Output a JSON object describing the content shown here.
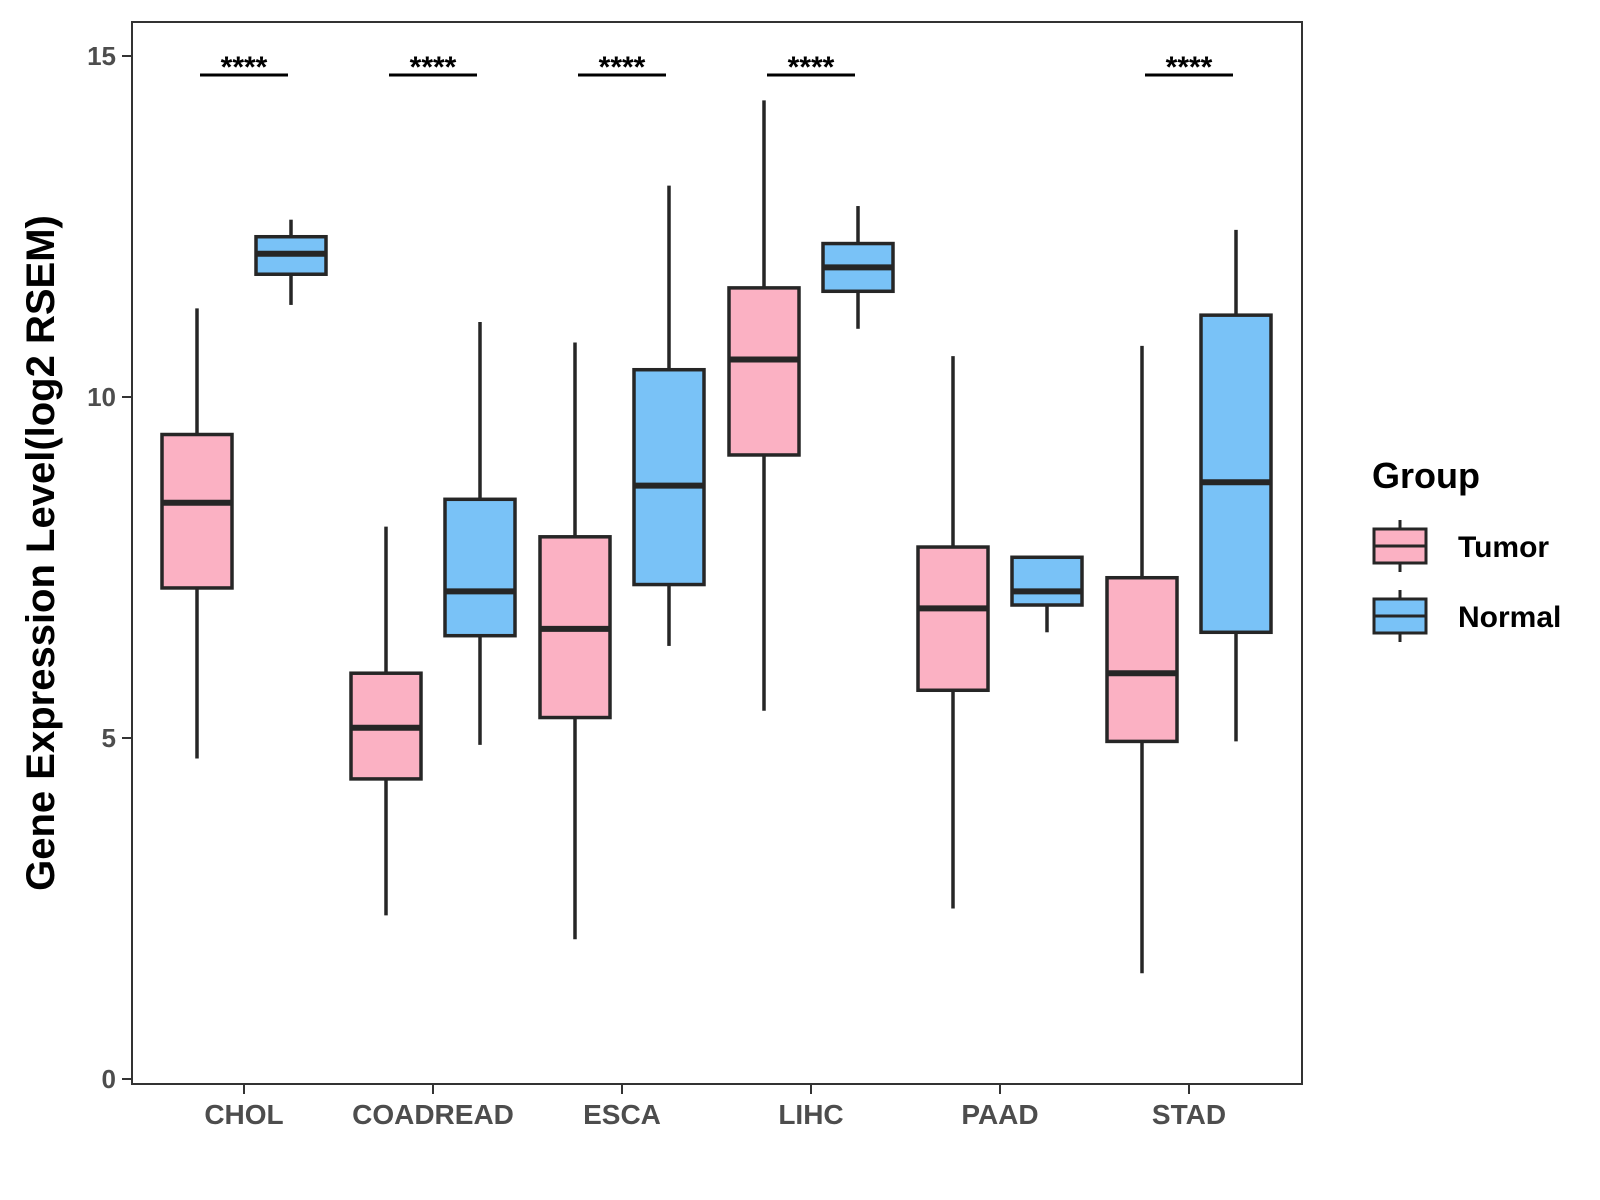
{
  "chart_data": {
    "type": "boxplot",
    "title": "",
    "xlabel": "",
    "ylabel": "Gene Expression Level(log2 RSEM)",
    "ylim": [
      0,
      15
    ],
    "yticks": [
      0,
      5,
      10,
      15
    ],
    "categories": [
      "CHOL",
      "COADREAD",
      "ESCA",
      "LIHC",
      "PAAD",
      "STAD"
    ],
    "series": [
      {
        "name": "Tumor",
        "color": "#fbb1c3",
        "boxes": [
          {
            "min": 4.7,
            "q1": 7.2,
            "median": 8.45,
            "q3": 9.45,
            "max": 11.3
          },
          {
            "min": 2.4,
            "q1": 4.4,
            "median": 5.15,
            "q3": 5.95,
            "max": 8.1
          },
          {
            "min": 2.05,
            "q1": 5.3,
            "median": 6.6,
            "q3": 7.95,
            "max": 10.8
          },
          {
            "min": 5.4,
            "q1": 9.15,
            "median": 10.55,
            "q3": 11.6,
            "max": 14.35
          },
          {
            "min": 2.5,
            "q1": 5.7,
            "median": 6.9,
            "q3": 7.8,
            "max": 10.6
          },
          {
            "min": 1.55,
            "q1": 4.95,
            "median": 5.95,
            "q3": 7.35,
            "max": 10.75
          }
        ]
      },
      {
        "name": "Normal",
        "color": "#79c2f7",
        "boxes": [
          {
            "min": 11.35,
            "q1": 11.8,
            "median": 12.1,
            "q3": 12.35,
            "max": 12.6
          },
          {
            "min": 4.9,
            "q1": 6.5,
            "median": 7.15,
            "q3": 8.5,
            "max": 11.1
          },
          {
            "min": 6.35,
            "q1": 7.25,
            "median": 8.7,
            "q3": 10.4,
            "max": 13.1
          },
          {
            "min": 11.0,
            "q1": 11.55,
            "median": 11.9,
            "q3": 12.25,
            "max": 12.8
          },
          {
            "min": 6.55,
            "q1": 6.95,
            "median": 7.15,
            "q3": 7.65,
            "max": 7.65
          },
          {
            "min": 4.95,
            "q1": 6.55,
            "median": 8.75,
            "q3": 11.2,
            "max": 12.45
          }
        ]
      }
    ],
    "significance": [
      "****",
      "****",
      "****",
      "****",
      "",
      "****"
    ],
    "legend": {
      "title": "Group",
      "position": "right",
      "items": [
        "Tumor",
        "Normal"
      ]
    },
    "grid": false
  }
}
